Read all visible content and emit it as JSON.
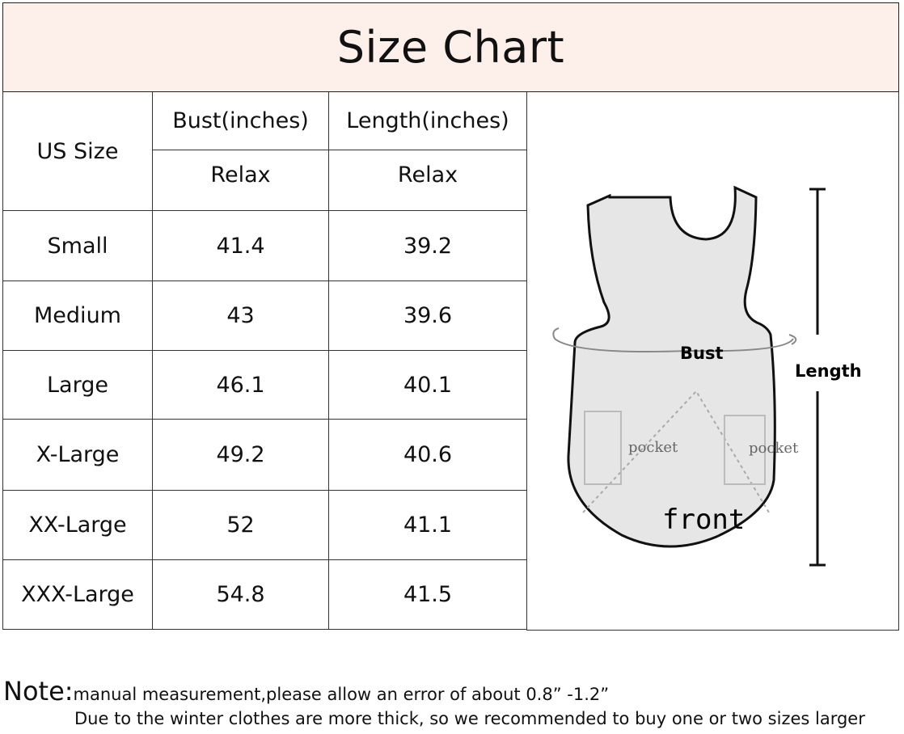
{
  "title": "Size Chart",
  "table": {
    "size_header": "US Size",
    "columns": [
      {
        "label": "Bust(inches)",
        "sub": "Relax"
      },
      {
        "label": "Length(inches)",
        "sub": "Relax"
      }
    ],
    "rows": [
      {
        "size": "Small",
        "bust": "41.4",
        "length": "39.2"
      },
      {
        "size": "Medium",
        "bust": "43",
        "length": "39.6"
      },
      {
        "size": "Large",
        "bust": "46.1",
        "length": "40.1"
      },
      {
        "size": "X-Large",
        "bust": "49.2",
        "length": "40.6"
      },
      {
        "size": "XX-Large",
        "bust": "52",
        "length": "41.1"
      },
      {
        "size": "XXX-Large",
        "bust": "54.8",
        "length": "41.5"
      }
    ]
  },
  "diagram": {
    "bust_label": "Bust",
    "length_label": "Length",
    "pocket_left": "pocket",
    "pocket_right": "pocket",
    "front_label": "front"
  },
  "note": {
    "prefix": "Note:",
    "line1": "manual measurement,please allow an error of about 0.8”   -1.2”",
    "line2": "Due to the winter clothes are more thick, so we recommended to buy one or two sizes larger"
  },
  "colors": {
    "title_band": "#fdefe9"
  }
}
